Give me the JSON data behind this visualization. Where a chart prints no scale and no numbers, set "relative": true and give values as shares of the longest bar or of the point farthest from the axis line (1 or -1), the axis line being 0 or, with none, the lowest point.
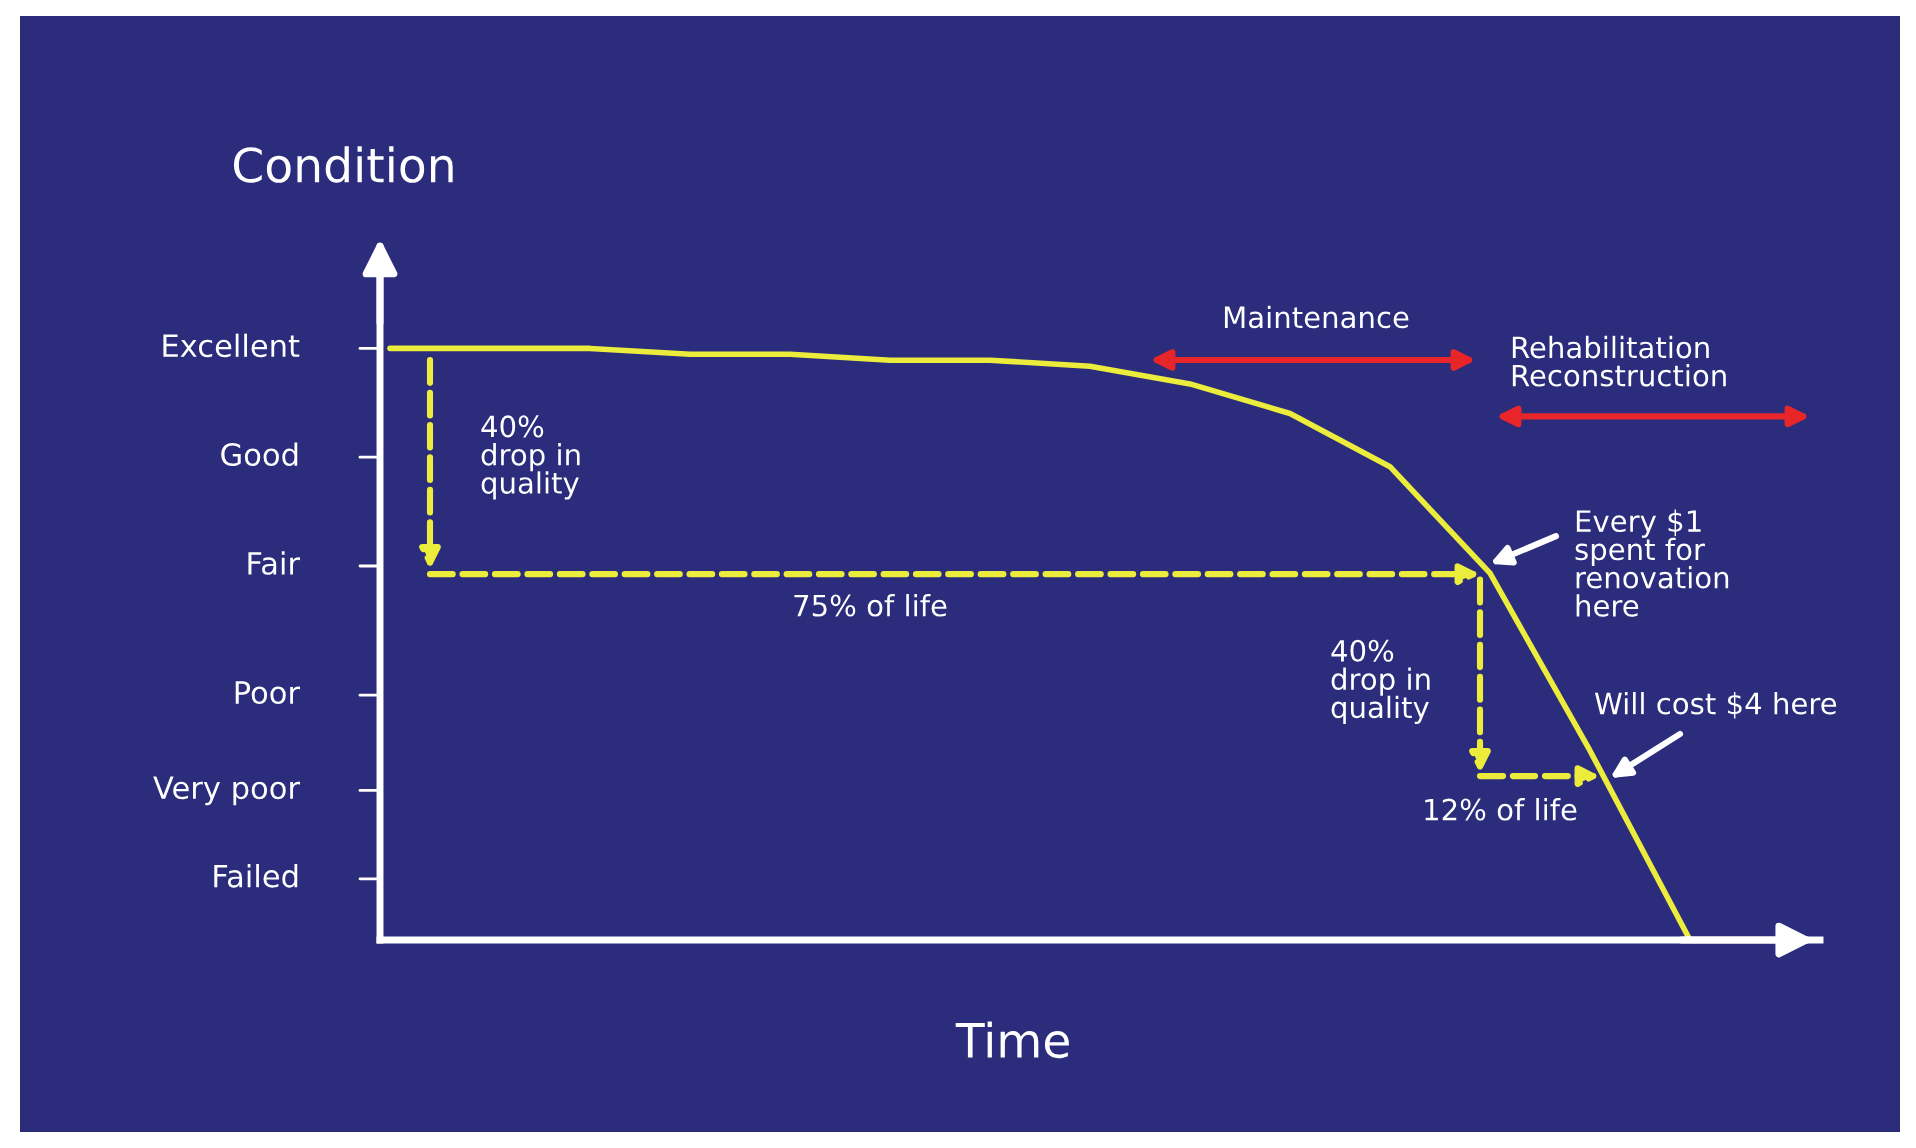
{
  "chart_data": {
    "type": "line",
    "ylabel": "Condition",
    "xlabel": "Time",
    "relative": true,
    "categories": [
      null,
      null,
      null,
      null,
      null,
      null,
      null,
      null,
      null,
      null,
      null,
      null,
      null,
      null
    ],
    "series": [
      {
        "color": "#ecec3c",
        "values": [
          1,
          1,
          1,
          0.99,
          0.99,
          0.98,
          0.98,
          0.97,
          0.94,
          0.89,
          0.8,
          0.62,
          0.32,
          0
        ]
      }
    ],
    "grid": false,
    "legend": false,
    "marker": "none",
    "line_style": "solid",
    "annotations": [
      "Excellent",
      "Good",
      "Fair",
      "Poor",
      "Very poor",
      "Failed",
      "Maintenance",
      "Rehabilitation\nReconstruction",
      "40%\ndrop in\nquality",
      "75% of life",
      "Every $1\nspent for\nrenovation\nhere",
      "40%\ndrop in\nquality",
      "Will cost $4 here",
      "12% of life"
    ]
  }
}
